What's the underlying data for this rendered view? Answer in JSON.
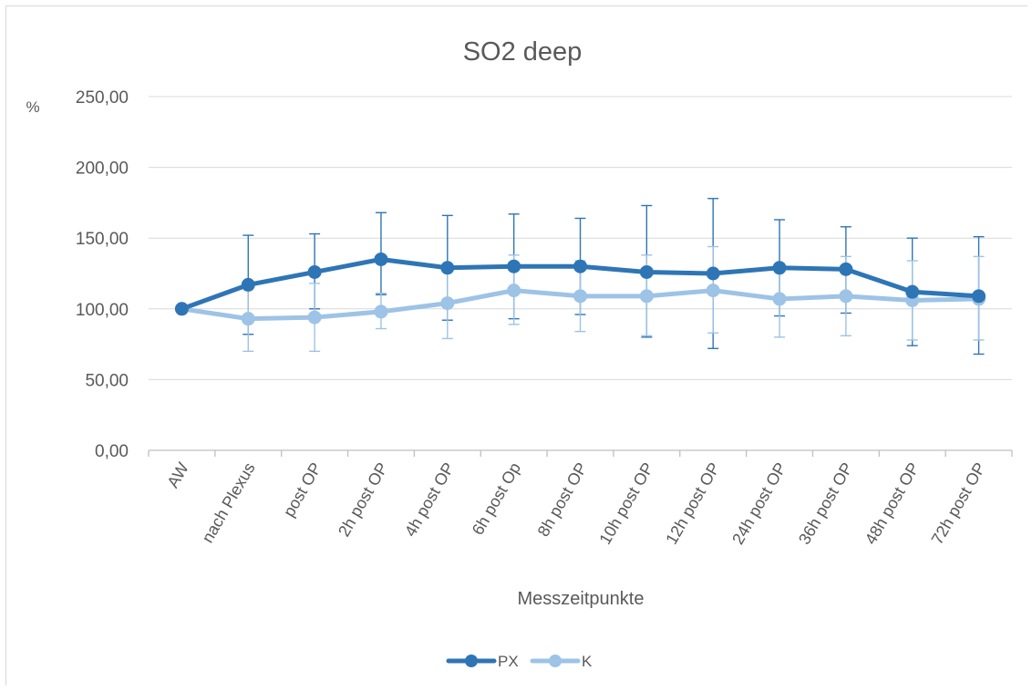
{
  "chart_data": {
    "type": "line",
    "title": "SO2 deep",
    "xlabel": "Messzeitpunkte",
    "ylabel": "%",
    "ylim": [
      0,
      250
    ],
    "yticks": [
      "0,00",
      "50,00",
      "100,00",
      "150,00",
      "200,00",
      "250,00"
    ],
    "ytick_values": [
      0,
      50,
      100,
      150,
      200,
      250
    ],
    "grid": true,
    "legend": "bottom-center",
    "categories": [
      "AW",
      "nach Plexus",
      "post OP",
      "2h post OP",
      "4h post OP",
      "6h post Op",
      "8h post OP",
      "10h post OP",
      "12h post OP",
      "24h post OP",
      "36h post OP",
      "48h post OP",
      "72h post OP"
    ],
    "series": [
      {
        "name": "PX",
        "color": "#2e75b6",
        "values": [
          100,
          117,
          126,
          135,
          129,
          130,
          130,
          126,
          125,
          129,
          128,
          112,
          109
        ],
        "err_upper": [
          100,
          152,
          153,
          168,
          166,
          167,
          164,
          173,
          178,
          163,
          158,
          150,
          151
        ],
        "err_lower": [
          100,
          82,
          100,
          110,
          92,
          93,
          96,
          80,
          72,
          95,
          97,
          74,
          68
        ]
      },
      {
        "name": "K",
        "color": "#9dc3e6",
        "values": [
          100,
          93,
          94,
          98,
          104,
          113,
          109,
          109,
          113,
          107,
          109,
          106,
          107
        ],
        "err_upper": [
          100,
          115,
          118,
          111,
          130,
          138,
          134,
          138,
          144,
          132,
          137,
          134,
          137
        ],
        "err_lower": [
          100,
          70,
          70,
          86,
          79,
          89,
          84,
          81,
          83,
          80,
          81,
          78,
          78
        ]
      }
    ]
  }
}
